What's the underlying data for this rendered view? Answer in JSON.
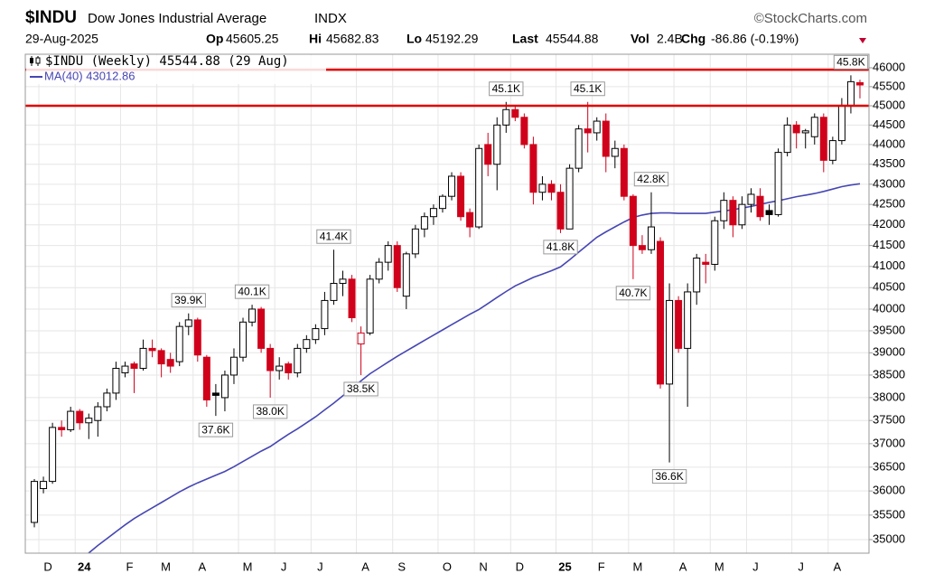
{
  "chart_data": {
    "type": "candlestick",
    "title": "$INDU",
    "subtitle": "Dow Jones Industrial Average",
    "exchange": "INDX",
    "date": "29-Aug-2025",
    "credit": "©StockCharts.com",
    "stats": [
      {
        "label": "Op",
        "value": "45605.25"
      },
      {
        "label": "Hi",
        "value": "45682.83"
      },
      {
        "label": "Lo",
        "value": "45192.29"
      },
      {
        "label": "Last",
        "value": "45544.88"
      },
      {
        "label": "Vol",
        "value": "2.4B"
      },
      {
        "label": "Chg",
        "value": "-86.86 (-0.19%)"
      }
    ],
    "log": true,
    "grid": true,
    "ylim": [
      34726,
      46363
    ],
    "yticks": [
      35000,
      35500,
      36000,
      36500,
      37000,
      37500,
      38000,
      38500,
      39000,
      39500,
      40000,
      40500,
      41000,
      41500,
      42000,
      42500,
      43000,
      43500,
      44000,
      44500,
      45000,
      45500,
      46000
    ],
    "categories": [
      null,
      "D",
      null,
      null,
      null,
      "24",
      null,
      null,
      null,
      null,
      "F",
      null,
      null,
      null,
      "M",
      null,
      null,
      null,
      "A",
      null,
      null,
      null,
      null,
      "M",
      null,
      null,
      null,
      "J",
      null,
      null,
      null,
      "J",
      null,
      null,
      null,
      null,
      "A",
      null,
      null,
      null,
      "S",
      null,
      null,
      null,
      null,
      "O",
      null,
      null,
      null,
      "N",
      null,
      null,
      null,
      "D",
      null,
      null,
      null,
      null,
      "25",
      null,
      null,
      null,
      "F",
      null,
      null,
      null,
      "M",
      null,
      null,
      null,
      null,
      "A",
      null,
      null,
      null,
      "M",
      null,
      null,
      null,
      "J",
      null,
      null,
      null,
      null,
      "J",
      null,
      null,
      null,
      "A",
      null,
      null,
      null
    ],
    "up_color": "#000000",
    "down_color": "#d0021b",
    "candles": {
      "name": "$INDU (Weekly) 45544.88 (29 Aug)",
      "open": [
        35350,
        36050,
        36200,
        37350,
        37300,
        37700,
        37450,
        37500,
        37800,
        38100,
        38550,
        38750,
        38650,
        39100,
        39050,
        38850,
        38800,
        39600,
        39750,
        38900,
        38100,
        38000,
        38500,
        38900,
        39700,
        40000,
        39100,
        38600,
        38750,
        38550,
        39100,
        39300,
        39550,
        40200,
        40600,
        40700,
        39200,
        39450,
        40700,
        41100,
        41500,
        40300,
        41300,
        41900,
        42200,
        42400,
        42700,
        43200,
        42300,
        41950,
        44000,
        43500,
        44500,
        44900,
        44700,
        44000,
        42800,
        43000,
        42800,
        41900,
        43400,
        44400,
        44300,
        44600,
        43700,
        43900,
        42700,
        41500,
        41400,
        41600,
        38300,
        40200,
        39100,
        40400,
        41100,
        41050,
        42100,
        42600,
        42000,
        42500,
        42700,
        42350,
        42250,
        43800,
        44500,
        44300,
        44200,
        44700,
        43600,
        44100,
        45000,
        45605.25
      ],
      "high": [
        36250,
        36300,
        37450,
        37500,
        37800,
        37750,
        37650,
        37900,
        38200,
        38800,
        38800,
        38800,
        39300,
        39300,
        39100,
        39000,
        39700,
        39900,
        39800,
        38950,
        38300,
        38600,
        39100,
        39800,
        40100,
        40050,
        39200,
        38900,
        38800,
        39200,
        39400,
        39650,
        40400,
        41400,
        40900,
        40800,
        39600,
        40800,
        41200,
        41600,
        41600,
        41350,
        42000,
        42300,
        42500,
        42750,
        43300,
        43300,
        42400,
        44000,
        44300,
        44700,
        45100,
        45000,
        44800,
        44200,
        43200,
        43100,
        43000,
        43500,
        44500,
        45100,
        44700,
        44800,
        44100,
        44000,
        42750,
        41750,
        42800,
        41700,
        40600,
        40300,
        40600,
        41300,
        41300,
        42200,
        42800,
        42700,
        42700,
        42900,
        42900,
        42500,
        43900,
        44700,
        44600,
        44400,
        44800,
        44800,
        44200,
        45200,
        45800,
        45682.83
      ],
      "low": [
        35250,
        35950,
        36150,
        37150,
        37250,
        37300,
        37100,
        37150,
        37700,
        37950,
        38450,
        38100,
        38600,
        38900,
        38450,
        38550,
        38700,
        39400,
        38800,
        37800,
        37600,
        37700,
        38300,
        38800,
        39600,
        39000,
        38000,
        38400,
        38400,
        38450,
        39000,
        39200,
        39400,
        40100,
        40300,
        39700,
        38500,
        39400,
        40600,
        40900,
        40400,
        40000,
        41200,
        41700,
        42000,
        42300,
        42600,
        42100,
        41700,
        41900,
        43200,
        42850,
        44300,
        44600,
        43900,
        42500,
        42600,
        42600,
        41800,
        41900,
        43300,
        43800,
        44100,
        43300,
        43400,
        42600,
        40700,
        41300,
        41300,
        38200,
        36600,
        39000,
        37800,
        40100,
        40600,
        40900,
        41900,
        41700,
        41900,
        42300,
        42100,
        42000,
        42200,
        43700,
        43900,
        43900,
        44000,
        43300,
        43500,
        44000,
        44800,
        45192.29
      ],
      "close": [
        36200,
        36200,
        37350,
        37300,
        37700,
        37450,
        37550,
        37800,
        38100,
        38650,
        38700,
        38650,
        39100,
        39050,
        38750,
        38700,
        39600,
        39750,
        38950,
        37950,
        38050,
        38500,
        38900,
        39700,
        40000,
        39100,
        38600,
        38700,
        38550,
        39100,
        39300,
        39550,
        40200,
        40600,
        40700,
        39800,
        39450,
        40700,
        41100,
        41500,
        40500,
        41300,
        41900,
        42200,
        42400,
        42700,
        43200,
        42200,
        41950,
        43900,
        43500,
        44500,
        44900,
        44700,
        44000,
        42800,
        43000,
        42800,
        41900,
        43400,
        44400,
        44300,
        44600,
        43700,
        43900,
        42700,
        41500,
        41400,
        41950,
        38300,
        40200,
        39100,
        40400,
        41200,
        41050,
        42100,
        42600,
        42000,
        42500,
        42750,
        42200,
        42250,
        43800,
        44500,
        44300,
        44350,
        44700,
        43600,
        44100,
        45000,
        45631.74,
        45544.88
      ]
    },
    "series": [
      {
        "name": "MA(40) 43012.86",
        "color": "#4646b4",
        "values": [
          null,
          null,
          null,
          null,
          null,
          34600,
          34730,
          34880,
          35020,
          35160,
          35300,
          35430,
          35540,
          35650,
          35760,
          35870,
          35980,
          36080,
          36170,
          36250,
          36330,
          36410,
          36510,
          36620,
          36730,
          36840,
          36940,
          37070,
          37200,
          37320,
          37450,
          37580,
          37730,
          37880,
          38040,
          38200,
          38370,
          38530,
          38660,
          38790,
          38920,
          39040,
          39160,
          39280,
          39400,
          39520,
          39640,
          39760,
          39880,
          39990,
          40130,
          40270,
          40410,
          40540,
          40640,
          40740,
          40820,
          40900,
          40990,
          41160,
          41340,
          41520,
          41700,
          41830,
          41950,
          42070,
          42180,
          42240,
          42280,
          42290,
          42290,
          42280,
          42280,
          42280,
          42280,
          42310,
          42340,
          42370,
          42410,
          42450,
          42500,
          42550,
          42590,
          42640,
          42690,
          42730,
          42770,
          42820,
          42880,
          42940,
          42980,
          43012.86
        ]
      }
    ],
    "hlines": [
      {
        "value": 45950,
        "color": "#e00000"
      },
      {
        "value": 45000,
        "color": "#e00000"
      }
    ],
    "annotations": [
      {
        "value": 39900,
        "label": "39.9K"
      },
      {
        "value": 40100,
        "label": "40.1K"
      },
      {
        "value": 41400,
        "label": "41.4K"
      },
      {
        "value": 45100,
        "label": "45.1K"
      },
      {
        "value": 45100,
        "label": "45.1K"
      },
      {
        "value": 42800,
        "label": "42.8K"
      },
      {
        "value": 45800,
        "label": "45.8K"
      },
      {
        "value": 37600,
        "label": "37.6K"
      },
      {
        "value": 38000,
        "label": "38.0K"
      },
      {
        "value": 38500,
        "label": "38.5K"
      },
      {
        "value": 41800,
        "label": "41.8K"
      },
      {
        "value": 40700,
        "label": "40.7K"
      },
      {
        "value": 36600,
        "label": "36.6K"
      }
    ]
  }
}
